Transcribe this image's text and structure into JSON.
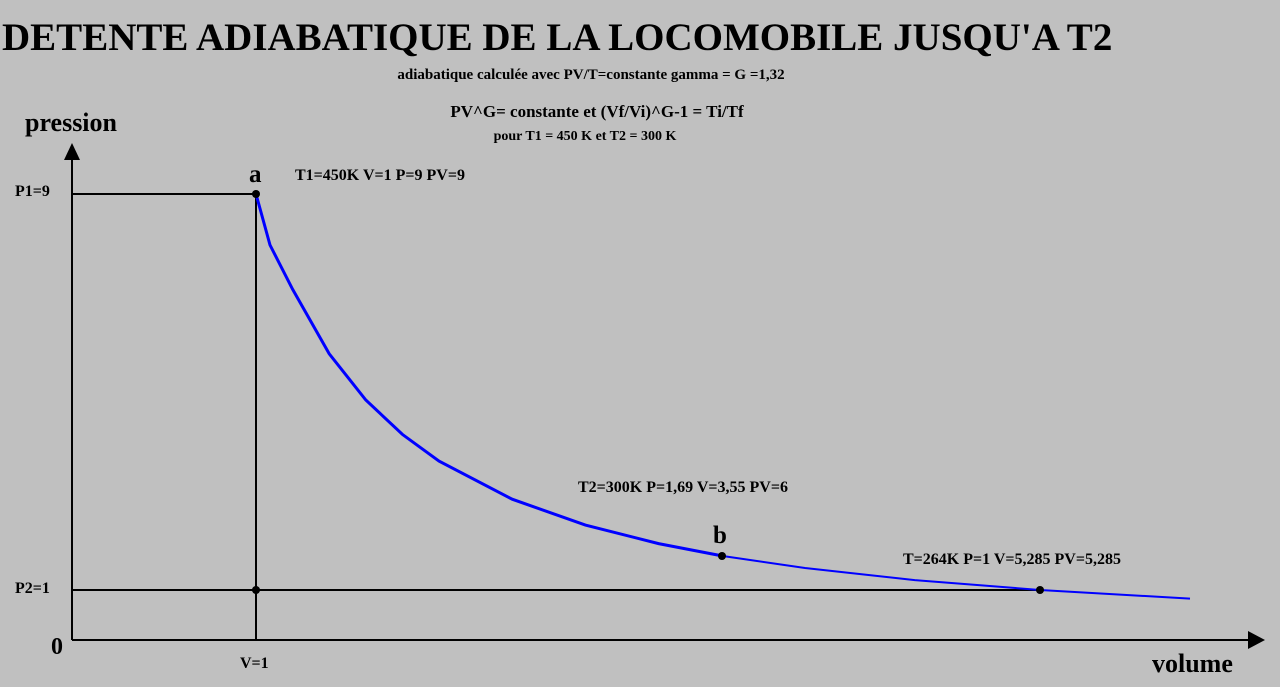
{
  "header": {
    "title": "DETENTE ADIABATIQUE DE LA LOCOMOBILE JUSQU'A T2",
    "subtitle": "adiabatique calculée avec PV/T=constante  gamma = G =1,32"
  },
  "formula": {
    "line1": "PV^G= constante  et   (Vf/Vi)^G-1 = Ti/Tf",
    "line2": "pour T1 = 450 K et T2 = 300 K"
  },
  "axes": {
    "y_label": "pression",
    "x_label": "volume",
    "p1": "P1=9",
    "p2": "P2=1",
    "origin": "0",
    "v1": "V=1"
  },
  "points": [
    {
      "label": "a",
      "info": "T1=450K  V=1  P=9  PV=9"
    },
    {
      "label": "b",
      "info": "T2=300K  P=1,69  V=3,55  PV=6"
    },
    {
      "info": "T=264K P=1 V=5,285 PV=5,285"
    }
  ]
}
